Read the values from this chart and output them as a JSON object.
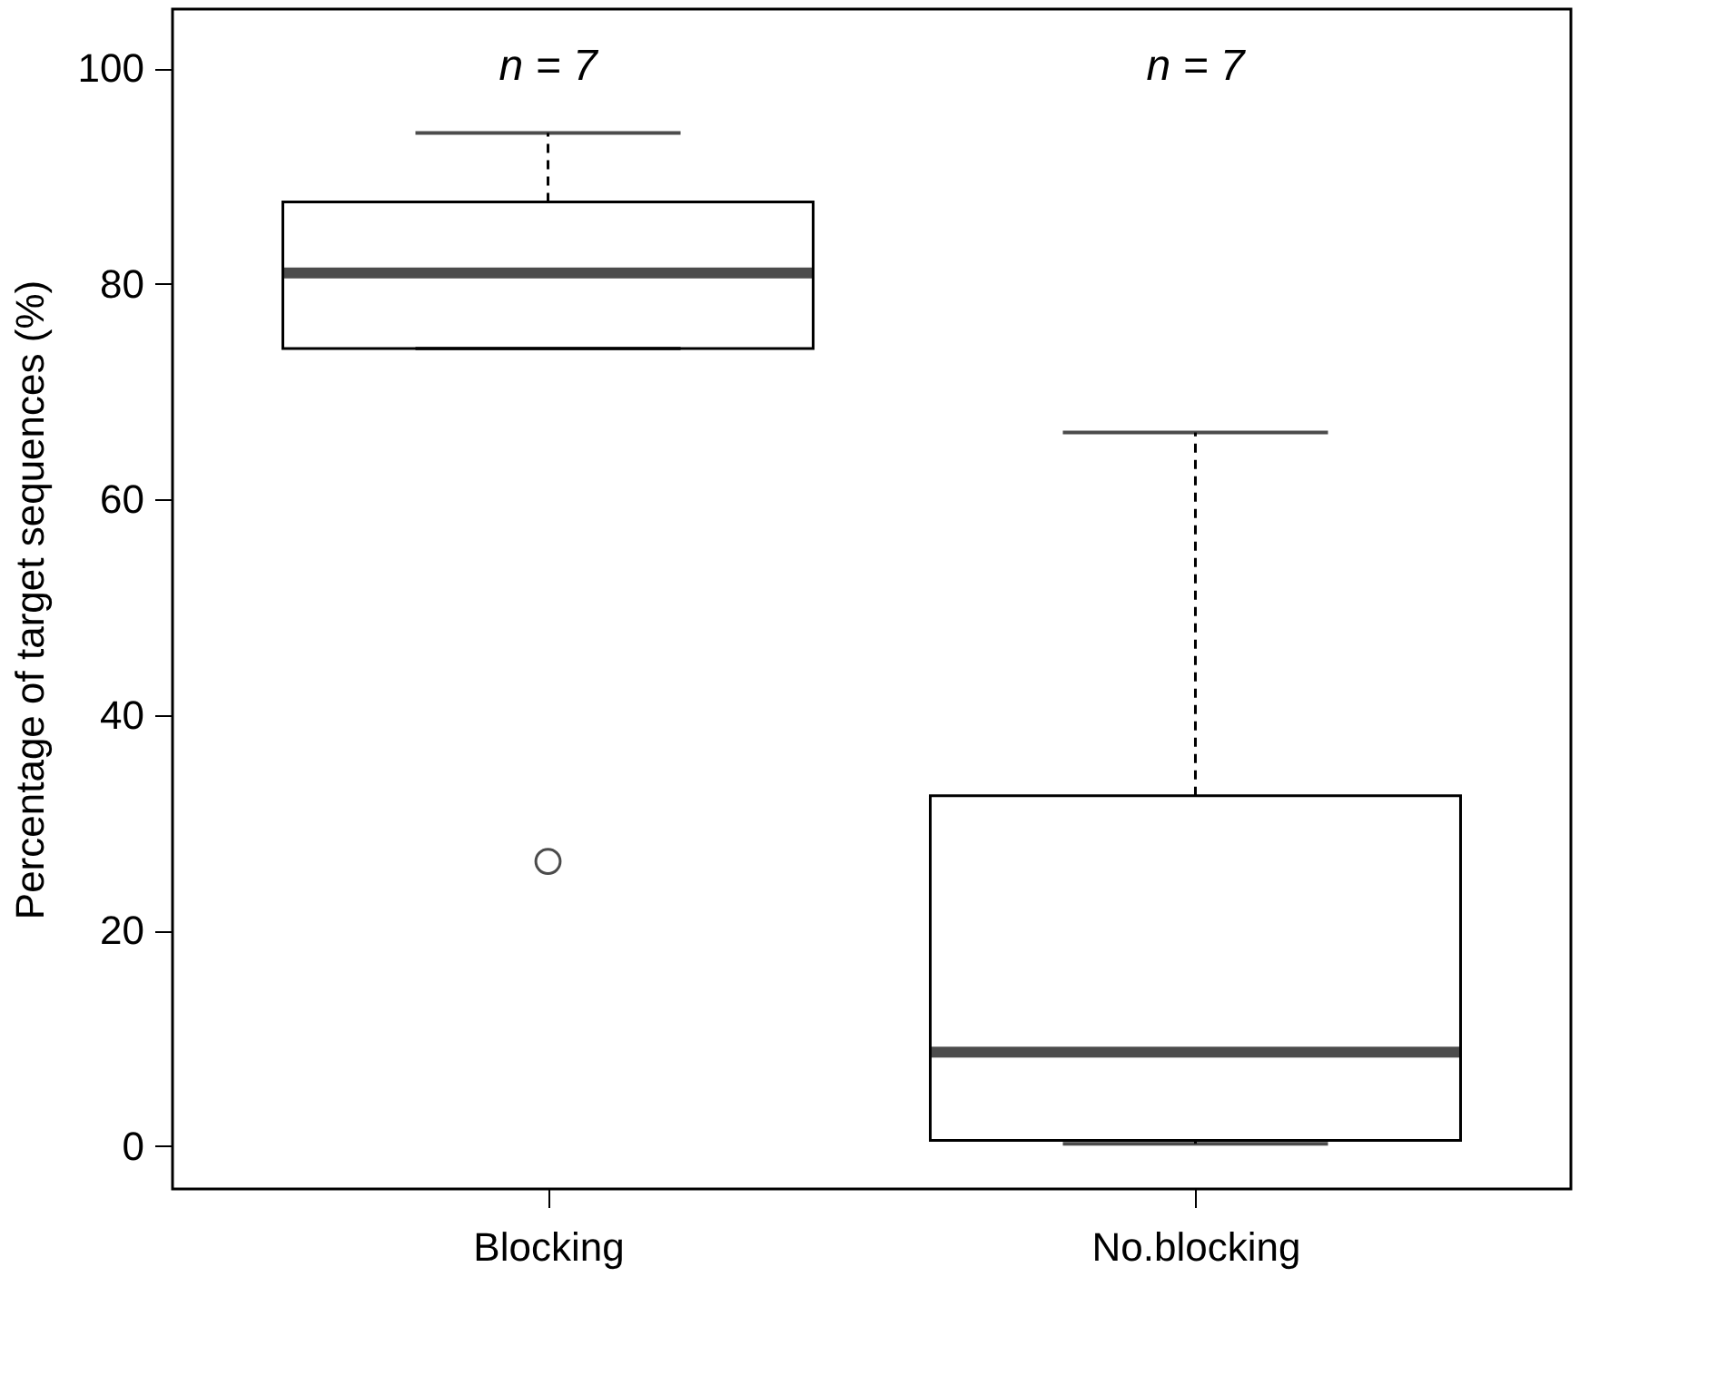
{
  "chart_data": {
    "type": "box",
    "ylabel": "Percentage of target sequences (%)",
    "categories": [
      "Blocking",
      "No.blocking"
    ],
    "boxes": [
      {
        "low": 74,
        "q1": 74,
        "median": 81,
        "q3": 87.6,
        "high": 94,
        "outliers": [
          26.4
        ]
      },
      {
        "low": 0.2,
        "q1": 0.5,
        "median": 8.7,
        "q3": 32.5,
        "high": 66.2
      }
    ],
    "ylim": [
      -4,
      105.5
    ],
    "yticks": [
      0,
      20,
      40,
      60,
      80,
      100
    ],
    "grid": false,
    "annotations": [
      "n = 7",
      "n = 7"
    ]
  }
}
